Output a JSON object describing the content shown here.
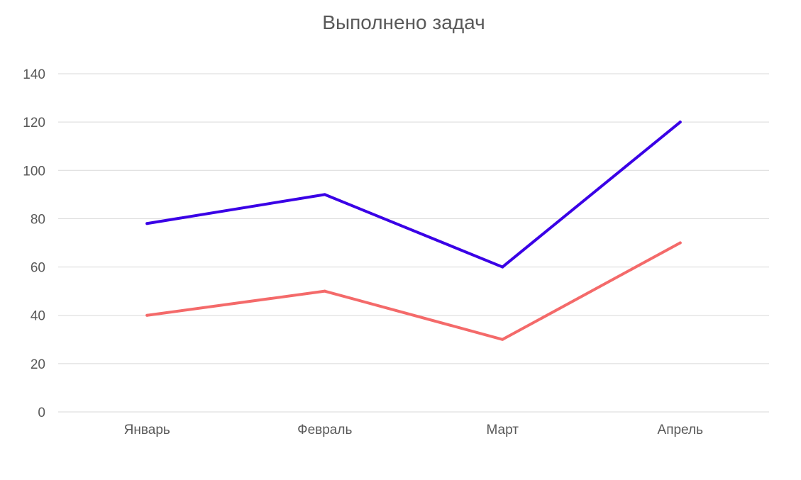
{
  "chart_data": {
    "type": "line",
    "title": "Выполнено задач",
    "categories": [
      "Январь",
      "Февраль",
      "Март",
      "Апрель"
    ],
    "series": [
      {
        "values": [
          78,
          90,
          60,
          120
        ],
        "color": "#3a00e6"
      },
      {
        "values": [
          40,
          50,
          30,
          70
        ],
        "color": "#f46a6a"
      }
    ],
    "ylim": [
      0,
      140
    ],
    "yticks": [
      0,
      20,
      40,
      60,
      80,
      100,
      120,
      140
    ],
    "grid": true,
    "legend": "none"
  }
}
